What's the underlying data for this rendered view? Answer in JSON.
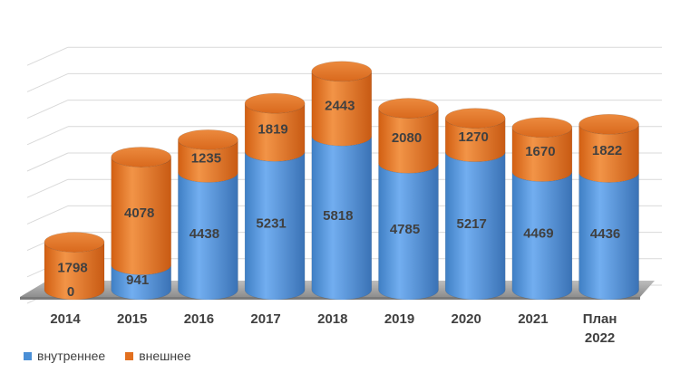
{
  "chart_data": {
    "type": "bar",
    "stacked": true,
    "style": "3d-cylinder",
    "categories": [
      "2014",
      "2015",
      "2016",
      "2017",
      "2018",
      "2019",
      "2020",
      "2021",
      "План 2022"
    ],
    "series": [
      {
        "name": "внутреннее",
        "values": [
          0,
          941,
          4438,
          5231,
          5818,
          4785,
          5217,
          4469,
          4436
        ],
        "color": "#4a8fd6"
      },
      {
        "name": "внешнее",
        "values": [
          1798,
          4078,
          1235,
          1819,
          2443,
          2080,
          1270,
          1670,
          1822
        ],
        "color": "#e2701f"
      }
    ],
    "ylim": [
      0,
      9000
    ],
    "grid": true,
    "legend_position": "bottom-left",
    "xlabel": "",
    "ylabel": "",
    "title": ""
  }
}
